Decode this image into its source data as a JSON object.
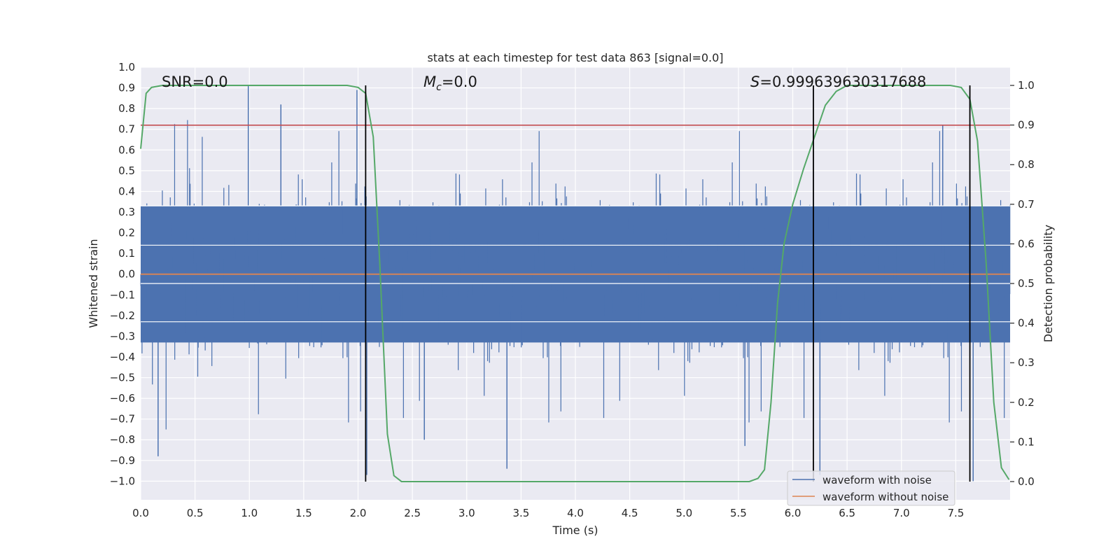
{
  "chart_data": {
    "type": "line",
    "title": "stats at each timestep for test data 863 [signal=0.0]",
    "xlabel": "Time (s)",
    "ylabel": "Whitened strain",
    "y2label": "Detection probability",
    "xlim": [
      0.0,
      8.0
    ],
    "ylim": [
      -1.09,
      1.0
    ],
    "y2lim": [
      -0.046,
      1.046
    ],
    "x_ticks": [
      "0.0",
      "0.5",
      "1.0",
      "1.5",
      "2.0",
      "2.5",
      "3.0",
      "3.5",
      "4.0",
      "4.5",
      "5.0",
      "5.5",
      "6.0",
      "6.5",
      "7.0",
      "7.5"
    ],
    "y_ticks": [
      "1.0",
      "0.9",
      "0.8",
      "0.7",
      "0.6",
      "0.5",
      "0.4",
      "0.3",
      "0.2",
      "0.1",
      "0.0",
      "−0.1",
      "−0.2",
      "−0.3",
      "−0.4",
      "−0.5",
      "−0.6",
      "−0.7",
      "−0.8",
      "−0.9",
      "−1.0"
    ],
    "y2_ticks": [
      "1.0",
      "0.9",
      "0.8",
      "0.7",
      "0.6",
      "0.5",
      "0.4",
      "0.3",
      "0.2",
      "0.1",
      "0.0"
    ],
    "annotations": {
      "snr": "SNR=0.0",
      "mc_symbol": "M",
      "mc_sub": "c",
      "mc_value": "=0.0",
      "s_symbol": "S",
      "s_value": "=0.999639630317688"
    },
    "threshold_line": {
      "y": 0.72,
      "color": "#c44e52"
    },
    "clean_waveform": {
      "name": "waveform without noise",
      "y": 0.0,
      "color": "#dd8452"
    },
    "noisy_waveform": {
      "name": "waveform with noise",
      "color": "#4c72b0",
      "duration": 8.0,
      "sample_rate": 2048,
      "core_amplitude": 0.33,
      "peak_extent": [
        -1.0,
        0.91
      ]
    },
    "detection_probability": {
      "name": "detection probability",
      "color": "#55a868",
      "points": [
        [
          0.0,
          0.84
        ],
        [
          0.05,
          0.98
        ],
        [
          0.1,
          0.995
        ],
        [
          0.2,
          1.0
        ],
        [
          1.9,
          1.0
        ],
        [
          2.0,
          0.995
        ],
        [
          2.07,
          0.98
        ],
        [
          2.14,
          0.87
        ],
        [
          2.2,
          0.55
        ],
        [
          2.27,
          0.12
        ],
        [
          2.33,
          0.015
        ],
        [
          2.4,
          0.0
        ],
        [
          5.6,
          0.0
        ],
        [
          5.68,
          0.008
        ],
        [
          5.74,
          0.03
        ],
        [
          5.8,
          0.2
        ],
        [
          5.86,
          0.45
        ],
        [
          5.92,
          0.6
        ],
        [
          6.0,
          0.7
        ],
        [
          6.1,
          0.79
        ],
        [
          6.2,
          0.87
        ],
        [
          6.3,
          0.95
        ],
        [
          6.4,
          0.985
        ],
        [
          6.5,
          1.0
        ],
        [
          7.45,
          1.0
        ],
        [
          7.55,
          0.995
        ],
        [
          7.63,
          0.965
        ],
        [
          7.7,
          0.86
        ],
        [
          7.78,
          0.55
        ],
        [
          7.85,
          0.2
        ],
        [
          7.92,
          0.035
        ],
        [
          7.99,
          0.005
        ]
      ]
    },
    "event_markers": [
      2.07,
      6.19,
      7.63
    ],
    "legend": [
      "waveform with noise",
      "waveform without noise"
    ],
    "legend_position": "lower-right",
    "grid": true
  }
}
